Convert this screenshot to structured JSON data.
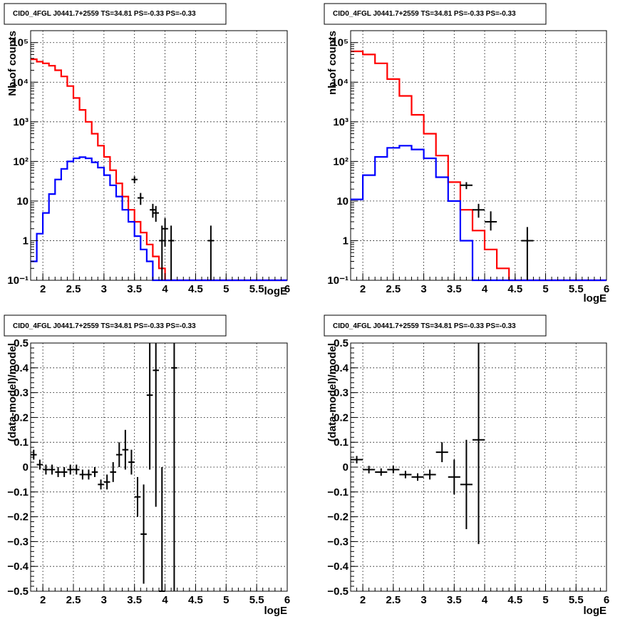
{
  "colors": {
    "model_total": "#ff0000",
    "model_source": "#0000ff",
    "data": "#000000"
  },
  "chart_data": [
    {
      "type": "line",
      "title": "CID0_4FGL J0441.7+2559 TS=34.81 PS=-0.33 PS=-0.33",
      "xlabel": "logE",
      "ylabel": "Nb of counts",
      "xlim": [
        1.8,
        6.0
      ],
      "ylim": [
        0.1,
        200000
      ],
      "yscale": "log",
      "grid": true,
      "xticks": [
        "2",
        "2.5",
        "3",
        "3.5",
        "4",
        "4.5",
        "5",
        "5.5",
        "6"
      ],
      "yticks": [
        "10⁻¹",
        "1",
        "10",
        "10²",
        "10³",
        "10⁴",
        "10⁵"
      ],
      "bin_edges": [
        1.8,
        1.9,
        2.0,
        2.1,
        2.2,
        2.3,
        2.4,
        2.5,
        2.6,
        2.7,
        2.8,
        2.9,
        3.0,
        3.1,
        3.2,
        3.3,
        3.4,
        3.5,
        3.6,
        3.7,
        3.8,
        3.9,
        4.0,
        4.1,
        4.2,
        4.3,
        4.4,
        4.5,
        4.6,
        4.7,
        4.8,
        4.9,
        5.0,
        5.1,
        5.2,
        5.3,
        5.4,
        5.5,
        5.6,
        5.7,
        5.8,
        5.9,
        6.0
      ],
      "series": [
        {
          "color": "model_total",
          "values": [
            38000,
            33000,
            30000,
            26000,
            20000,
            14000,
            8000,
            4000,
            2000,
            1000,
            500,
            250,
            130,
            60,
            28,
            13,
            6,
            3,
            1.6,
            0.8,
            0.4,
            0.2,
            0.1,
            0.1,
            0.1,
            0.1,
            0.1,
            0.1,
            0.1,
            0.1,
            0.1,
            0.1,
            0.1,
            0.1,
            0.1,
            0.1,
            0.1,
            0.1,
            0.1,
            0.1,
            0.1,
            0.1
          ]
        },
        {
          "color": "model_source",
          "values": [
            0.3,
            1.5,
            5,
            15,
            35,
            65,
            100,
            120,
            128,
            120,
            95,
            70,
            45,
            25,
            13,
            6,
            3,
            1.3,
            0.6,
            0.3,
            0.1,
            0.1,
            0.1,
            0.1,
            0.1,
            0.1,
            0.1,
            0.1,
            0.1,
            0.1,
            0.1,
            0.1,
            0.1,
            0.1,
            0.1,
            0.1,
            0.1,
            0.1,
            0.1,
            0.1,
            0.1,
            0.1
          ]
        }
      ],
      "points": {
        "color": "data",
        "x": [
          3.5,
          3.6,
          3.8,
          3.85,
          3.95,
          4.0,
          4.1,
          4.75
        ],
        "y": [
          35,
          12,
          6,
          5,
          1,
          2,
          1,
          1
        ],
        "xerr": [
          0.05,
          0.05,
          0.05,
          0.05,
          0.05,
          0.05,
          0.05,
          0.05
        ],
        "ylow": [
          28,
          8,
          3.8,
          3,
          0.1,
          0.7,
          0.1,
          0.1
        ],
        "yhigh": [
          42,
          16,
          8.5,
          7.5,
          2.4,
          3.7,
          2.4,
          2.4
        ]
      }
    },
    {
      "type": "line",
      "title": "CID0_4FGL J0441.7+2559 TS=34.81 PS=-0.33 PS=-0.33",
      "xlabel": "logE",
      "ylabel": "nb of counts",
      "xlim": [
        1.8,
        6.0
      ],
      "ylim": [
        0.1,
        200000
      ],
      "yscale": "log",
      "grid": true,
      "xticks": [
        "2",
        "2.5",
        "3",
        "3.5",
        "4",
        "4.5",
        "5",
        "5.5",
        "6"
      ],
      "yticks": [
        "10⁻¹",
        "1",
        "10",
        "10²",
        "10³",
        "10⁴",
        "10⁵"
      ],
      "bin_edges": [
        1.8,
        2.0,
        2.2,
        2.4,
        2.6,
        2.8,
        3.0,
        3.2,
        3.4,
        3.6,
        3.8,
        4.0,
        4.2,
        4.4,
        4.6,
        4.8,
        5.0,
        5.2,
        5.4,
        5.6,
        5.8,
        6.0
      ],
      "series": [
        {
          "color": "model_total",
          "values": [
            60000,
            50000,
            30000,
            12000,
            4500,
            1500,
            500,
            140,
            30,
            6,
            1.8,
            0.6,
            0.2,
            0.1,
            0.1,
            0.1,
            0.1,
            0.1,
            0.1,
            0.1,
            0.1
          ]
        },
        {
          "color": "model_source",
          "values": [
            11,
            45,
            130,
            220,
            250,
            200,
            120,
            40,
            10,
            1,
            0.1,
            0.1,
            0.1,
            0.1,
            0.1,
            0.1,
            0.1,
            0.1,
            0.1,
            0.1,
            0.1
          ]
        }
      ],
      "points": {
        "color": "data",
        "x": [
          3.7,
          3.9,
          4.1,
          4.7
        ],
        "y": [
          25,
          6,
          3,
          1
        ],
        "xerr": [
          0.1,
          0.1,
          0.1,
          0.1
        ],
        "ylow": [
          20,
          3.8,
          1.8,
          0.1
        ],
        "yhigh": [
          30,
          8.5,
          5.5,
          2.2
        ]
      }
    },
    {
      "type": "scatter",
      "title": "CID0_4FGL J0441.7+2559 TS=34.81 PS=-0.33 PS=-0.33",
      "xlabel": "logE",
      "ylabel": "(data-model)/model",
      "xlim": [
        1.8,
        6.0
      ],
      "ylim": [
        -0.5,
        0.5
      ],
      "yscale": "linear",
      "grid": true,
      "xticks": [
        "2",
        "2.5",
        "3",
        "3.5",
        "4",
        "4.5",
        "5",
        "5.5",
        "6"
      ],
      "yticks": [
        "−0.5",
        "−0.4",
        "−0.3",
        "−0.2",
        "−0.1",
        "0",
        "0.1",
        "0.2",
        "0.3",
        "0.4",
        "0.5"
      ],
      "points": {
        "color": "data",
        "x": [
          1.85,
          1.95,
          2.05,
          2.15,
          2.25,
          2.35,
          2.45,
          2.55,
          2.65,
          2.75,
          2.85,
          2.95,
          3.05,
          3.15,
          3.25,
          3.35,
          3.45,
          3.55,
          3.65,
          3.75,
          3.85,
          3.95,
          4.15
        ],
        "y": [
          0.05,
          0.01,
          -0.01,
          -0.01,
          -0.02,
          -0.02,
          -0.01,
          -0.01,
          -0.03,
          -0.03,
          -0.02,
          -0.07,
          -0.06,
          -0.02,
          0.05,
          0.07,
          0.02,
          -0.12,
          -0.27,
          0.29,
          0.39,
          -0.5,
          0.4
        ],
        "xerr": [
          0.05,
          0.05,
          0.05,
          0.05,
          0.05,
          0.05,
          0.05,
          0.05,
          0.05,
          0.05,
          0.05,
          0.05,
          0.05,
          0.05,
          0.05,
          0.05,
          0.05,
          0.05,
          0.05,
          0.05,
          0.05,
          0.05,
          0.05
        ],
        "yerr": [
          0.02,
          0.02,
          0.02,
          0.02,
          0.02,
          0.02,
          0.02,
          0.02,
          0.02,
          0.02,
          0.02,
          0.02,
          0.03,
          0.04,
          0.05,
          0.08,
          0.05,
          0.08,
          0.2,
          0.3,
          0.55,
          0.5,
          1.0
        ]
      }
    },
    {
      "type": "scatter",
      "title": "CID0_4FGL J0441.7+2559 TS=34.81 PS=-0.33 PS=-0.33",
      "xlabel": "logE",
      "ylabel": "(data-model)/model",
      "xlim": [
        1.8,
        6.0
      ],
      "ylim": [
        -0.5,
        0.5
      ],
      "yscale": "linear",
      "grid": true,
      "xticks": [
        "2",
        "2.5",
        "3",
        "3.5",
        "4",
        "4.5",
        "5",
        "5.5",
        "6"
      ],
      "yticks": [
        "−0.5",
        "−0.4",
        "−0.3",
        "−0.2",
        "−0.1",
        "0",
        "0.1",
        "0.2",
        "0.3",
        "0.4",
        "0.5"
      ],
      "points": {
        "color": "data",
        "x": [
          1.9,
          2.1,
          2.3,
          2.5,
          2.7,
          2.9,
          3.1,
          3.3,
          3.5,
          3.7,
          3.9
        ],
        "y": [
          0.03,
          -0.01,
          -0.02,
          -0.01,
          -0.03,
          -0.04,
          -0.03,
          0.06,
          -0.04,
          -0.07,
          0.11
        ],
        "xerr": [
          0.1,
          0.1,
          0.1,
          0.1,
          0.1,
          0.1,
          0.1,
          0.1,
          0.1,
          0.1,
          0.1
        ],
        "yerr": [
          0.015,
          0.015,
          0.015,
          0.015,
          0.015,
          0.015,
          0.02,
          0.04,
          0.07,
          0.18,
          0.42
        ]
      }
    }
  ]
}
